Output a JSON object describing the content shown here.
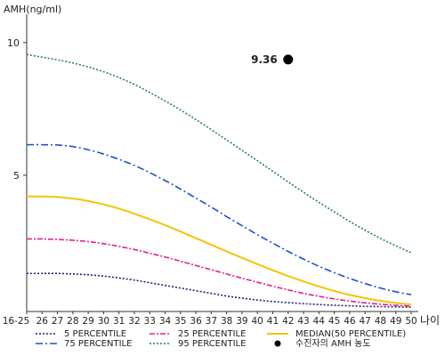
{
  "chart_data": {
    "type": "line",
    "ylabel": "AMH(ng/ml)",
    "xlabel": "나이",
    "ylim": [
      0,
      11
    ],
    "yticks": [
      5,
      10
    ],
    "x": [
      "16-25",
      "26",
      "27",
      "28",
      "29",
      "30",
      "31",
      "32",
      "33",
      "34",
      "35",
      "36",
      "37",
      "38",
      "39",
      "40",
      "41",
      "42",
      "43",
      "44",
      "45",
      "46",
      "47",
      "48",
      "49",
      "50"
    ],
    "series": [
      {
        "name": "5 PERCENTILE",
        "color": "#1a237e",
        "dash": "2,2",
        "values": [
          1.3,
          1.3,
          1.3,
          1.28,
          1.25,
          1.2,
          1.13,
          1.05,
          0.95,
          0.85,
          0.75,
          0.65,
          0.55,
          0.45,
          0.37,
          0.3,
          0.24,
          0.2,
          0.16,
          0.13,
          0.1,
          0.08,
          0.06,
          0.05,
          0.04,
          0.03
        ]
      },
      {
        "name": "25 PERCENTILE",
        "color": "#e0218a",
        "dash": "6,2,2,2",
        "values": [
          2.6,
          2.6,
          2.58,
          2.55,
          2.5,
          2.42,
          2.32,
          2.2,
          2.06,
          1.92,
          1.76,
          1.6,
          1.44,
          1.28,
          1.12,
          0.97,
          0.82,
          0.68,
          0.55,
          0.44,
          0.34,
          0.26,
          0.19,
          0.14,
          0.1,
          0.07
        ]
      },
      {
        "name": "MEDIAN(50 PERCENTILE)",
        "color": "#f5c400",
        "dash": "",
        "values": [
          4.2,
          4.2,
          4.18,
          4.12,
          4.03,
          3.9,
          3.74,
          3.55,
          3.34,
          3.12,
          2.88,
          2.63,
          2.38,
          2.13,
          1.89,
          1.65,
          1.42,
          1.2,
          1.0,
          0.81,
          0.64,
          0.49,
          0.37,
          0.27,
          0.19,
          0.13
        ]
      },
      {
        "name": "75 PERCENTILE",
        "color": "#1e4fd6",
        "dash": "8,3,2,3",
        "values": [
          6.15,
          6.15,
          6.14,
          6.08,
          5.96,
          5.8,
          5.6,
          5.37,
          5.1,
          4.8,
          4.48,
          4.14,
          3.8,
          3.44,
          3.1,
          2.76,
          2.44,
          2.13,
          1.84,
          1.57,
          1.33,
          1.11,
          0.92,
          0.75,
          0.61,
          0.5
        ]
      },
      {
        "name": "95 PERCENTILE",
        "color": "#2e7d4f",
        "dash": "2,2",
        "values": [
          9.55,
          9.45,
          9.35,
          9.23,
          9.08,
          8.9,
          8.68,
          8.42,
          8.12,
          7.8,
          7.46,
          7.1,
          6.72,
          6.33,
          5.94,
          5.55,
          5.15,
          4.75,
          4.36,
          3.98,
          3.62,
          3.26,
          2.93,
          2.62,
          2.34,
          2.08
        ]
      }
    ],
    "annotation": {
      "name": "수진자의 AMH 농도",
      "x": "42",
      "y": 9.36,
      "label": "9.36",
      "color": "#000000"
    },
    "legend": {
      "placement": "bottom",
      "items": [
        "5 PERCENTILE",
        "25 PERCENTILE",
        "MEDIAN(50 PERCENTILE)",
        "75 PERCENTILE",
        "95 PERCENTILE",
        "수진자의 AMH 농도"
      ]
    },
    "grid": false
  }
}
